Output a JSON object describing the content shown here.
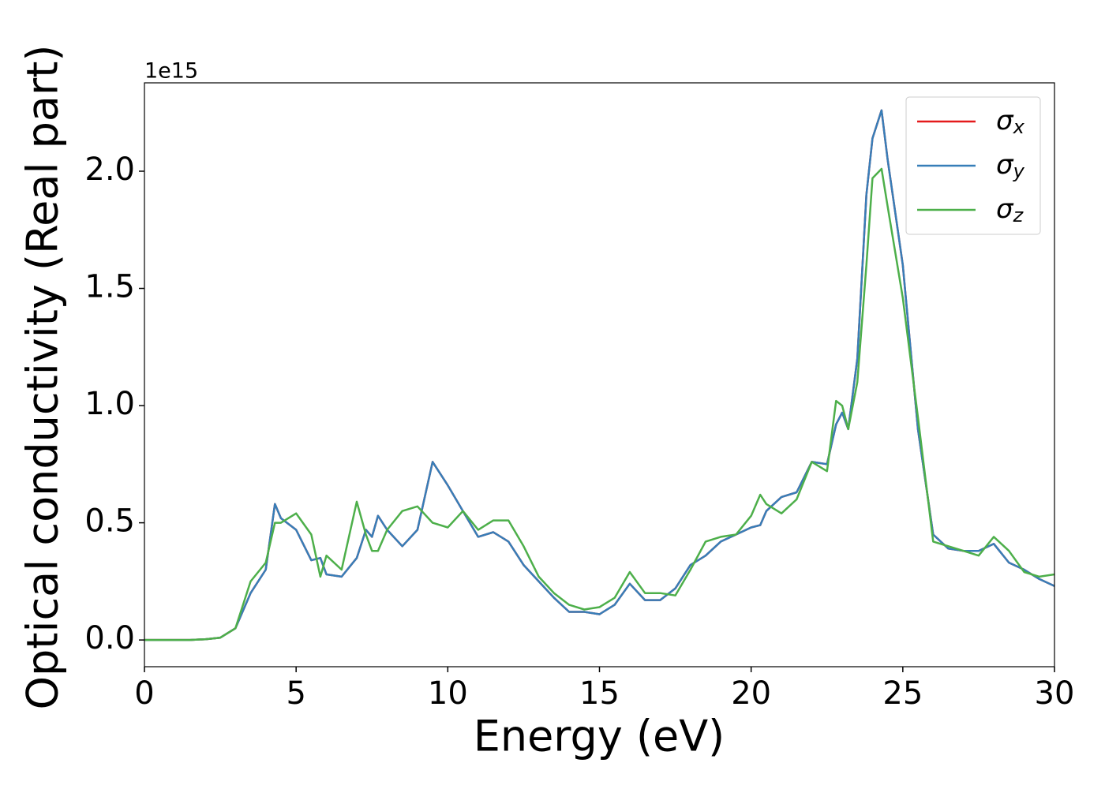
{
  "chart_data": {
    "type": "line",
    "xlabel": "Energy (eV)",
    "ylabel": "Optical conductivity (Real part)",
    "y_offset_label": "1e15",
    "x": [
      0,
      0.5,
      1,
      1.5,
      2,
      2.5,
      3,
      3.5,
      4,
      4.3,
      4.5,
      5,
      5.5,
      5.8,
      6,
      6.5,
      7,
      7.3,
      7.5,
      7.7,
      8,
      8.5,
      9,
      9.5,
      10,
      10.5,
      11,
      11.5,
      12,
      12.5,
      13,
      13.5,
      14,
      14.5,
      15,
      15.5,
      16,
      16.5,
      17,
      17.5,
      18,
      18.5,
      19,
      19.5,
      20,
      20.3,
      20.5,
      21,
      21.5,
      22,
      22.5,
      22.8,
      23,
      23.2,
      23.5,
      23.8,
      24,
      24.3,
      24.5,
      25,
      25.5,
      26,
      26.5,
      27,
      27.5,
      28,
      28.5,
      29,
      29.5,
      30
    ],
    "series": [
      {
        "name": "σx",
        "color": "#e41a1c",
        "values": [
          0,
          0,
          0,
          0,
          0.003,
          0.01,
          0.05,
          0.2,
          0.3,
          0.58,
          0.52,
          0.47,
          0.34,
          0.35,
          0.28,
          0.27,
          0.35,
          0.47,
          0.44,
          0.53,
          0.47,
          0.4,
          0.47,
          0.76,
          0.66,
          0.55,
          0.44,
          0.46,
          0.42,
          0.32,
          0.25,
          0.18,
          0.12,
          0.12,
          0.11,
          0.15,
          0.24,
          0.17,
          0.17,
          0.22,
          0.32,
          0.36,
          0.42,
          0.45,
          0.48,
          0.49,
          0.55,
          0.61,
          0.63,
          0.76,
          0.75,
          0.92,
          0.97,
          0.9,
          1.2,
          1.9,
          2.14,
          2.26,
          2.05,
          1.6,
          0.9,
          0.45,
          0.39,
          0.38,
          0.38,
          0.41,
          0.33,
          0.3,
          0.26,
          0.23
        ]
      },
      {
        "name": "σy",
        "color": "#377eb8",
        "values": [
          0,
          0,
          0,
          0,
          0.003,
          0.01,
          0.05,
          0.2,
          0.3,
          0.58,
          0.52,
          0.47,
          0.34,
          0.35,
          0.28,
          0.27,
          0.35,
          0.47,
          0.44,
          0.53,
          0.47,
          0.4,
          0.47,
          0.76,
          0.66,
          0.55,
          0.44,
          0.46,
          0.42,
          0.32,
          0.25,
          0.18,
          0.12,
          0.12,
          0.11,
          0.15,
          0.24,
          0.17,
          0.17,
          0.22,
          0.32,
          0.36,
          0.42,
          0.45,
          0.48,
          0.49,
          0.55,
          0.61,
          0.63,
          0.76,
          0.75,
          0.92,
          0.97,
          0.9,
          1.2,
          1.9,
          2.14,
          2.26,
          2.05,
          1.6,
          0.9,
          0.45,
          0.39,
          0.38,
          0.38,
          0.41,
          0.33,
          0.3,
          0.26,
          0.23
        ]
      },
      {
        "name": "σz",
        "color": "#4daf4a",
        "values": [
          0,
          0,
          0,
          0,
          0.003,
          0.01,
          0.05,
          0.25,
          0.33,
          0.5,
          0.5,
          0.54,
          0.45,
          0.27,
          0.36,
          0.3,
          0.59,
          0.45,
          0.38,
          0.38,
          0.47,
          0.55,
          0.57,
          0.5,
          0.48,
          0.55,
          0.47,
          0.51,
          0.51,
          0.4,
          0.27,
          0.2,
          0.15,
          0.13,
          0.14,
          0.18,
          0.29,
          0.2,
          0.2,
          0.19,
          0.3,
          0.42,
          0.44,
          0.45,
          0.53,
          0.62,
          0.58,
          0.54,
          0.6,
          0.76,
          0.72,
          1.02,
          1.0,
          0.9,
          1.1,
          1.6,
          1.97,
          2.01,
          1.85,
          1.46,
          0.95,
          0.42,
          0.4,
          0.38,
          0.36,
          0.44,
          0.38,
          0.29,
          0.27,
          0.28
        ]
      }
    ],
    "xlim": [
      0,
      30
    ],
    "xticks": [
      0,
      5,
      10,
      15,
      20,
      25,
      30
    ],
    "ylim": [
      -0.114,
      2.377
    ],
    "yticks": [
      {
        "value": 0,
        "label": "0.0"
      },
      {
        "value": 0.5,
        "label": "0.5"
      },
      {
        "value": 1,
        "label": "1.0"
      },
      {
        "value": 1.5,
        "label": "1.5"
      },
      {
        "value": 2,
        "label": "2.0"
      }
    ],
    "legend": "upper right",
    "grid": false
  }
}
